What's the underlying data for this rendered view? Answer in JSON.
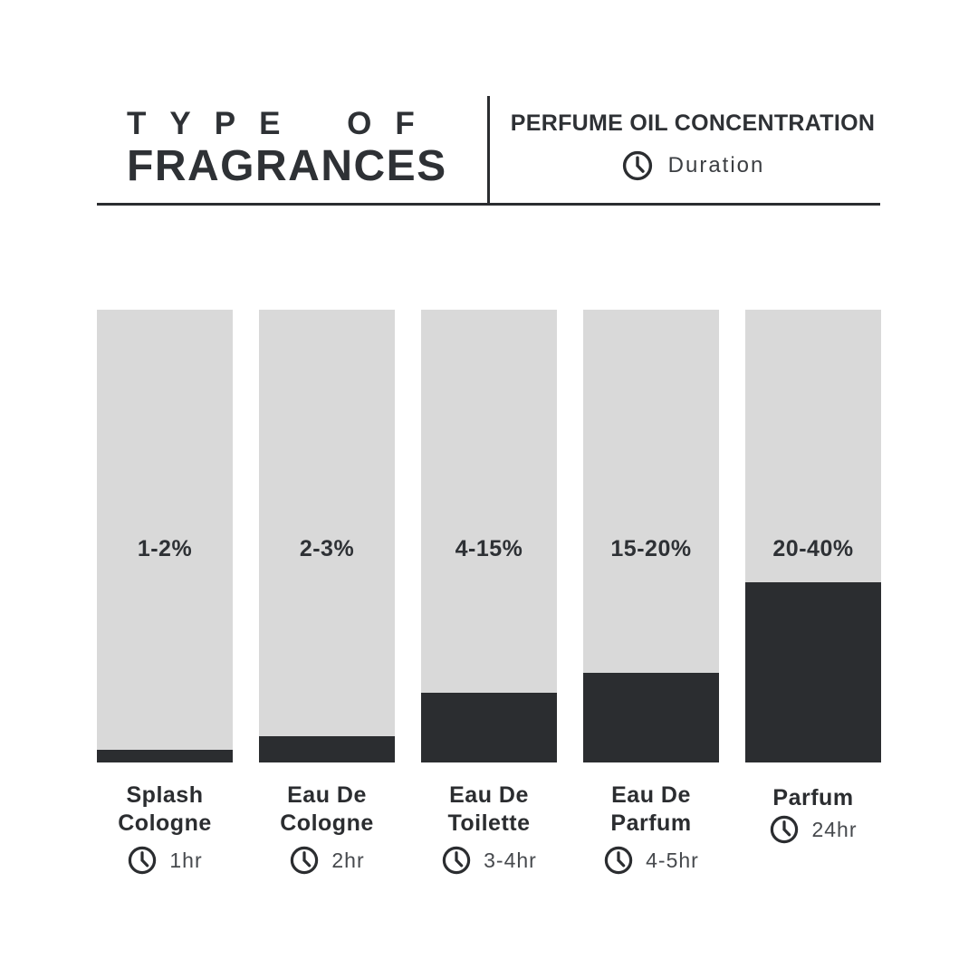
{
  "header": {
    "title_line1": "TYPE OF",
    "title_line2": "FRAGRANCES",
    "right_title": "PERFUME OIL CONCENTRATION",
    "legend_label": "Duration",
    "legend_icon": "clock-icon"
  },
  "colors": {
    "dark": "#2b2d30",
    "bar_track": "#d9d9d9",
    "background": "#ffffff"
  },
  "chart_data": {
    "type": "bar",
    "title": "Type of Fragrances",
    "subtitle": "Perfume Oil Concentration / Duration",
    "categories": [
      "Splash Cologne",
      "Eau De Cologne",
      "Eau De Toilette",
      "Eau De Parfum",
      "Parfum"
    ],
    "series": [
      {
        "name": "Perfume oil concentration (% of bar filled)",
        "values": [
          2.8,
          5.8,
          15.4,
          19.8,
          39.8
        ]
      }
    ],
    "value_labels": [
      "1-2%",
      "2-3%",
      "4-15%",
      "15-20%",
      "20-40%"
    ],
    "durations": [
      "1hr",
      "2hr",
      "3-4hr",
      "4-5hr",
      "24hr"
    ],
    "ylim": [
      0,
      100
    ],
    "grid": false,
    "legend_position": "top-right",
    "xlabel": "",
    "ylabel": ""
  },
  "bars": [
    {
      "name_line1": "Splash",
      "name_line2": "Cologne",
      "pct": "1-2%",
      "duration": "1hr",
      "fill": 2.8
    },
    {
      "name_line1": "Eau De",
      "name_line2": "Cologne",
      "pct": "2-3%",
      "duration": "2hr",
      "fill": 5.8
    },
    {
      "name_line1": "Eau De",
      "name_line2": "Toilette",
      "pct": "4-15%",
      "duration": "3-4hr",
      "fill": 15.4
    },
    {
      "name_line1": "Eau De",
      "name_line2": "Parfum",
      "pct": "15-20%",
      "duration": "4-5hr",
      "fill": 19.8
    },
    {
      "name_line1": "Parfum",
      "name_line2": "",
      "pct": "20-40%",
      "duration": "24hr",
      "fill": 39.8
    }
  ]
}
